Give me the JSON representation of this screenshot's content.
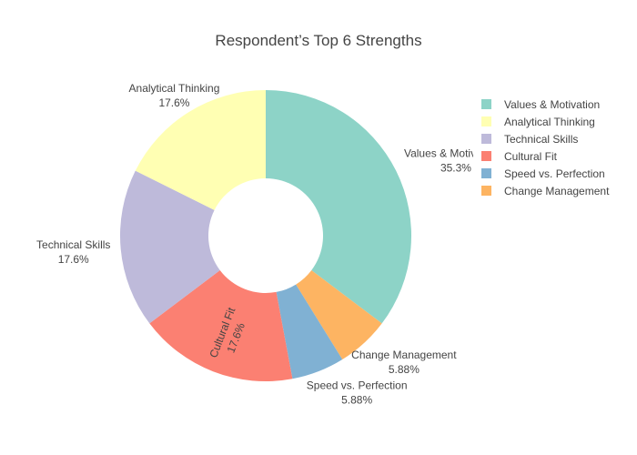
{
  "chart_data": {
    "type": "pie",
    "title": "Respondent’s Top 6 Strengths",
    "hole": true,
    "legend_position": "top-right",
    "slices": [
      {
        "label": "Values & Motivation",
        "percent_text": "35.3%",
        "value": 6,
        "color": "#8dd3c7"
      },
      {
        "label": "Change Management",
        "percent_text": "5.88%",
        "value": 1,
        "color": "#fdb462"
      },
      {
        "label": "Speed vs. Perfection",
        "percent_text": "5.88%",
        "value": 1,
        "color": "#80b1d3"
      },
      {
        "label": "Cultural Fit",
        "percent_text": "17.6%",
        "value": 3,
        "color": "#fb8072"
      },
      {
        "label": "Technical Skills",
        "percent_text": "17.6%",
        "value": 3,
        "color": "#bebada"
      },
      {
        "label": "Analytical Thinking",
        "percent_text": "17.6%",
        "value": 3,
        "color": "#ffffb3"
      }
    ],
    "legend": [
      "Values & Motivation",
      "Analytical Thinking",
      "Technical Skills",
      "Cultural Fit",
      "Speed vs. Perfection",
      "Change Management"
    ]
  }
}
